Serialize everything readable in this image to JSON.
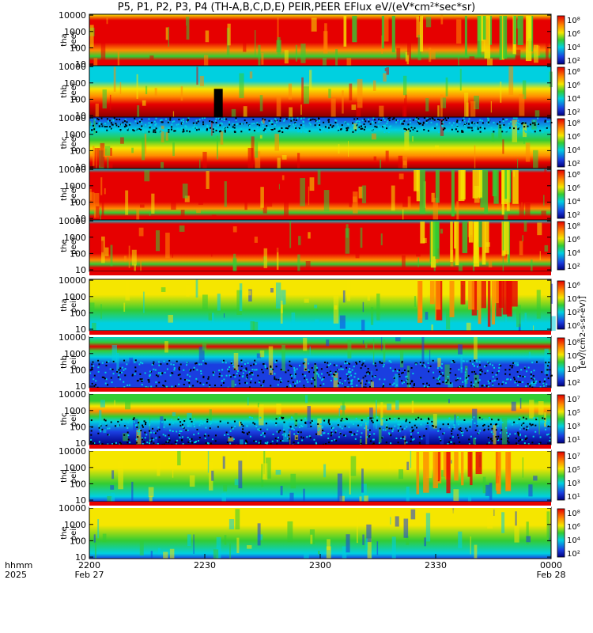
{
  "chart_data": {
    "type": "heatmap",
    "title": "P5, P1, P2, P3, P4 (TH-A,B,C,D,E) PEIR,PEER EFlux eV/(eV*cm²*sec*sr)",
    "x_label_row1": "hhmm",
    "x_label_row2": "2025",
    "x_ticks": [
      {
        "t": "2200",
        "sub": "Feb 27"
      },
      {
        "t": "2230",
        "sub": ""
      },
      {
        "t": "2300",
        "sub": ""
      },
      {
        "t": "2330",
        "sub": ""
      },
      {
        "t": "0000",
        "sub": "Feb 28"
      }
    ],
    "y_ticks": [
      "10000",
      "1000",
      "100",
      "10"
    ],
    "y_scale": "log",
    "colorbar_label": "[eV/(cm2-s-sr-eV)]",
    "colors": {
      "red": "#e60000",
      "orange": "#ff8c00",
      "yellow": "#f5e600",
      "green": "#33cc33",
      "cyan": "#00d0e0",
      "blue": "#1a3ee0",
      "navy": "#000080"
    },
    "panels": [
      {
        "probe": "tha",
        "species": "peer",
        "label": "tha\npeer",
        "cbar_ticks": [
          "10⁸",
          "10⁶",
          "10⁴",
          "10²"
        ],
        "dominant": "red"
      },
      {
        "probe": "thb",
        "species": "peer",
        "label": "thb\npeer",
        "cbar_ticks": [
          "10⁸",
          "10⁶",
          "10⁴",
          "10²"
        ],
        "dominant": "red"
      },
      {
        "probe": "thc",
        "species": "peer",
        "label": "thc\npeer",
        "cbar_ticks": [
          "10⁸",
          "10⁶",
          "10⁴",
          "10²"
        ],
        "dominant": "red"
      },
      {
        "probe": "thd",
        "species": "peer",
        "label": "thd\npeer",
        "cbar_ticks": [
          "10⁸",
          "10⁶",
          "10⁴",
          "10²"
        ],
        "dominant": "red"
      },
      {
        "probe": "the",
        "species": "peer",
        "label": "the\npeer",
        "cbar_ticks": [
          "10⁸",
          "10⁶",
          "10⁴",
          "10²"
        ],
        "dominant": "red"
      },
      {
        "probe": "tha",
        "species": "peir",
        "label": "tha\npeir",
        "cbar_ticks": [
          "10⁶",
          "10⁴",
          "10²",
          "10⁰"
        ],
        "dominant": "green"
      },
      {
        "probe": "thb",
        "species": "peir",
        "label": "thb\npeir",
        "cbar_ticks": [
          "10⁸",
          "10⁶",
          "10⁴",
          "10²"
        ],
        "dominant": "blue"
      },
      {
        "probe": "thc",
        "species": "peir",
        "label": "thc\npeir",
        "cbar_ticks": [
          "10⁷",
          "10⁵",
          "10³",
          "10¹"
        ],
        "dominant": "blue"
      },
      {
        "probe": "thd",
        "species": "peir",
        "label": "thd\npeir",
        "cbar_ticks": [
          "10⁷",
          "10⁵",
          "10³",
          "10¹"
        ],
        "dominant": "green"
      },
      {
        "probe": "the",
        "species": "peir",
        "label": "the\npeir",
        "cbar_ticks": [
          "10⁸",
          "10⁶",
          "10⁴",
          "10²"
        ],
        "dominant": "green"
      }
    ]
  }
}
